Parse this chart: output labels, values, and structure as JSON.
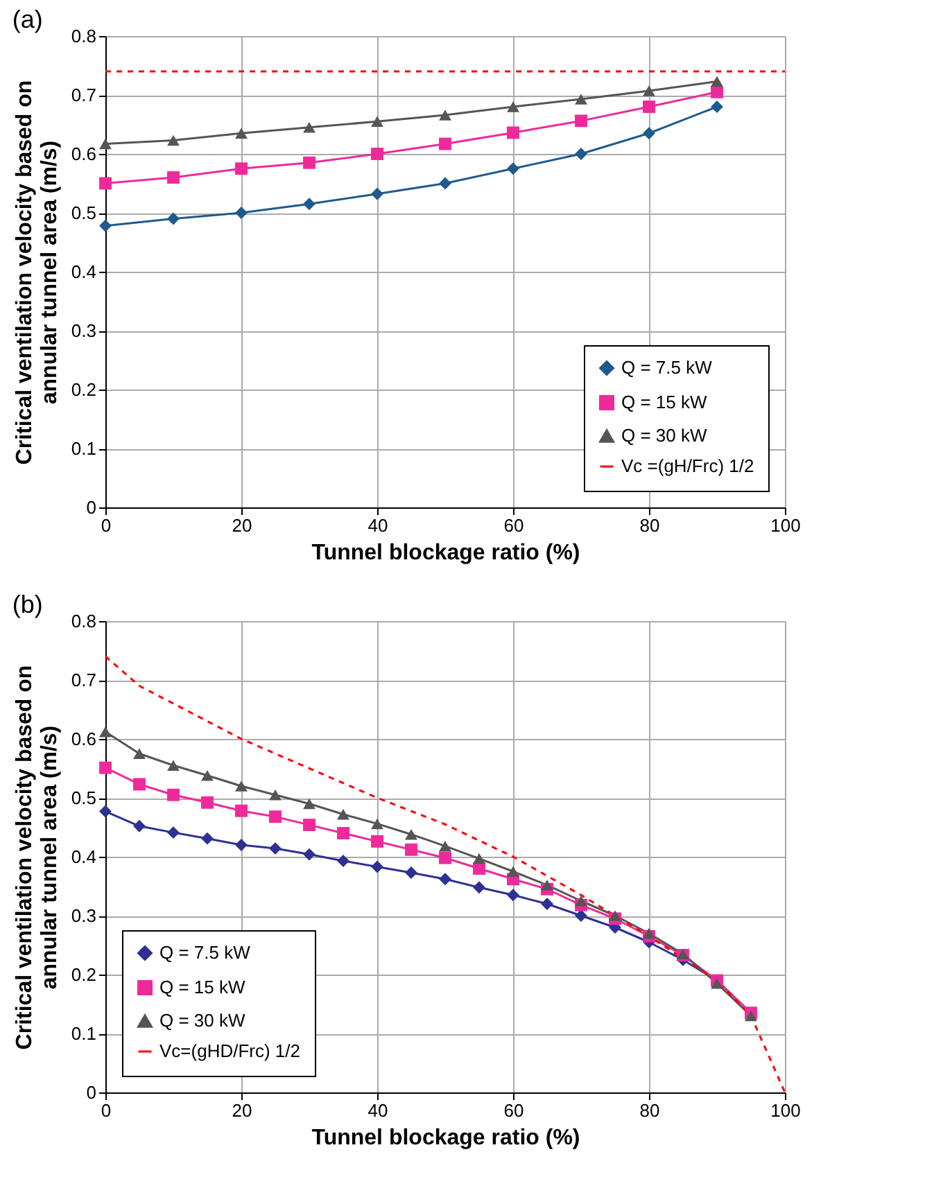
{
  "chart_data": [
    {
      "type": "line",
      "title": "(a)",
      "xlabel": "Tunnel blockage ratio (%)",
      "ylabel": "Critical ventilation velocity based on\nannular tunnel area (m/s)",
      "xlim": [
        0,
        100
      ],
      "xticks": [
        0,
        20,
        40,
        60,
        80,
        100
      ],
      "ylim": [
        0,
        0.8
      ],
      "yticks": [
        0,
        0.1,
        0.2,
        0.3,
        0.4,
        0.5,
        0.6,
        0.7,
        0.8
      ],
      "grid": true,
      "legend": "bottom right",
      "series": [
        {
          "name": "Q = 7.5 kW",
          "color": "#1f5a8e",
          "marker": "diamond",
          "line_style": "solid",
          "x": [
            0,
            10,
            20,
            30,
            40,
            50,
            60,
            70,
            80,
            90
          ],
          "values": [
            0.478,
            0.49,
            0.5,
            0.515,
            0.532,
            0.55,
            0.575,
            0.6,
            0.635,
            0.68
          ]
        },
        {
          "name": "Q = 15 kW",
          "color": "#ee2a9b",
          "marker": "square",
          "line_style": "solid",
          "x": [
            0,
            10,
            20,
            30,
            40,
            50,
            60,
            70,
            80,
            90
          ],
          "values": [
            0.55,
            0.56,
            0.575,
            0.585,
            0.6,
            0.617,
            0.636,
            0.656,
            0.68,
            0.705
          ]
        },
        {
          "name": "Q = 30 kW",
          "color": "#555555",
          "marker": "triangle",
          "line_style": "solid",
          "x": [
            0,
            10,
            20,
            30,
            40,
            50,
            60,
            70,
            80,
            90
          ],
          "values": [
            0.617,
            0.623,
            0.635,
            0.645,
            0.655,
            0.666,
            0.68,
            0.693,
            0.707,
            0.723
          ]
        },
        {
          "name": "Vc =(gH/Frc) 1/2",
          "color": "#ff0000",
          "marker": "none",
          "line_style": "dashed",
          "x": [
            0,
            100
          ],
          "values": [
            0.74,
            0.74
          ]
        }
      ]
    },
    {
      "type": "line",
      "title": "(b)",
      "xlabel": "Tunnel blockage ratio (%)",
      "ylabel": "Critical ventilation velocity based on\nannular tunnel area (m/s)",
      "xlim": [
        0,
        100
      ],
      "xticks": [
        0,
        20,
        40,
        60,
        80,
        100
      ],
      "ylim": [
        0,
        0.8
      ],
      "yticks": [
        0,
        0.1,
        0.2,
        0.3,
        0.4,
        0.5,
        0.6,
        0.7,
        0.8
      ],
      "grid": true,
      "legend": "bottom left",
      "series": [
        {
          "name": "Q = 7.5 kW",
          "color": "#2e3192",
          "marker": "diamond",
          "line_style": "solid",
          "x": [
            0,
            5,
            10,
            15,
            20,
            25,
            30,
            35,
            40,
            45,
            50,
            55,
            60,
            65,
            70,
            75,
            80,
            85,
            90,
            95
          ],
          "values": [
            0.477,
            0.452,
            0.441,
            0.431,
            0.42,
            0.414,
            0.404,
            0.393,
            0.383,
            0.373,
            0.362,
            0.348,
            0.335,
            0.32,
            0.3,
            0.28,
            0.255,
            0.225,
            0.19,
            0.135
          ]
        },
        {
          "name": "Q = 15 kW",
          "color": "#ee2a9b",
          "marker": "square",
          "line_style": "solid",
          "x": [
            0,
            5,
            10,
            15,
            20,
            25,
            30,
            35,
            40,
            45,
            50,
            55,
            60,
            65,
            70,
            75,
            80,
            85,
            90,
            95
          ],
          "values": [
            0.551,
            0.523,
            0.505,
            0.492,
            0.478,
            0.468,
            0.454,
            0.44,
            0.426,
            0.412,
            0.398,
            0.38,
            0.362,
            0.345,
            0.318,
            0.295,
            0.265,
            0.233,
            0.19,
            0.135
          ]
        },
        {
          "name": "Q = 30 kW",
          "color": "#555555",
          "marker": "triangle",
          "line_style": "solid",
          "x": [
            0,
            5,
            10,
            15,
            20,
            25,
            30,
            35,
            40,
            45,
            50,
            55,
            60,
            65,
            70,
            75,
            80,
            85,
            90,
            95
          ],
          "values": [
            0.612,
            0.575,
            0.555,
            0.538,
            0.52,
            0.505,
            0.49,
            0.472,
            0.456,
            0.438,
            0.418,
            0.397,
            0.375,
            0.352,
            0.325,
            0.3,
            0.27,
            0.235,
            0.185,
            0.13
          ]
        },
        {
          "name": "Vc=(gHD/Frc) 1/2",
          "color": "#ff0000",
          "marker": "none",
          "line_style": "dashed",
          "x": [
            0,
            5,
            10,
            20,
            30,
            40,
            50,
            60,
            70,
            80,
            90,
            95,
            100
          ],
          "values": [
            0.74,
            0.69,
            0.66,
            0.6,
            0.55,
            0.5,
            0.455,
            0.4,
            0.335,
            0.265,
            0.19,
            0.13,
            0
          ]
        }
      ]
    }
  ]
}
